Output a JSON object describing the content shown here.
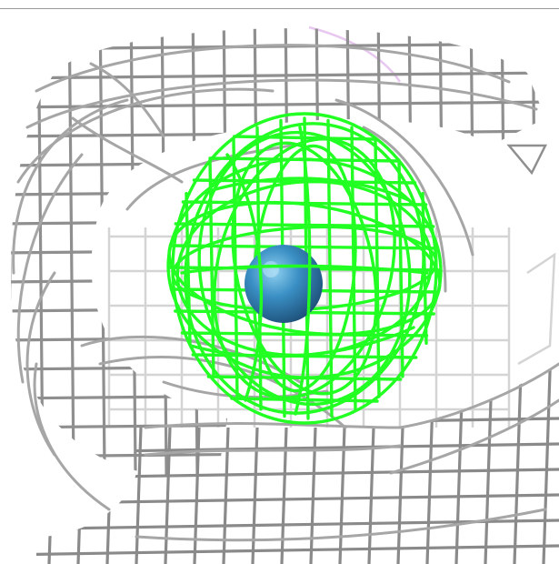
{
  "scene": {
    "background": "#ffffff",
    "mesh_color": "#8f8f8f",
    "mesh_color_light": "#d4d4d4",
    "mesh_color_dark": "#5e5e5e",
    "density_color": "#22ff22",
    "density_color_dark": "#10b810",
    "ion_color": "#3a8fc4",
    "ion_highlight": "#8fd0f0",
    "faint_contour_color": "#e8c8f0"
  },
  "objects": [
    {
      "name": "electron-density-mesh-gray",
      "icon": "wireframe-mesh-icon"
    },
    {
      "name": "difference-density-mesh-green",
      "icon": "wireframe-mesh-icon"
    },
    {
      "name": "metal-ion-sphere",
      "icon": "sphere-icon"
    }
  ]
}
